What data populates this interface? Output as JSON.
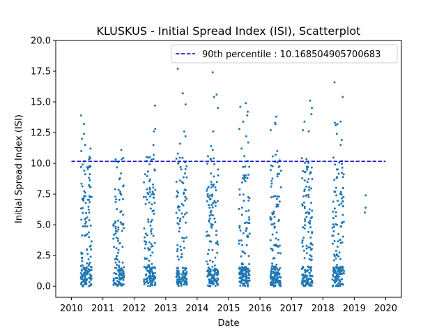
{
  "chart_data": {
    "type": "scatter",
    "title": "KLUSKUS - Initial Spread Index (ISI), Scatterplot",
    "xlabel": "Date",
    "ylabel": "Initial Spread Index (ISI)",
    "xlim": [
      2009.5,
      2020.5
    ],
    "ylim": [
      -0.9,
      20.0
    ],
    "x_ticks": [
      "2010",
      "2011",
      "2012",
      "2013",
      "2014",
      "2015",
      "2016",
      "2017",
      "2018",
      "2019",
      "2020"
    ],
    "y_ticks": [
      "0.0",
      "2.5",
      "5.0",
      "7.5",
      "10.0",
      "12.5",
      "15.0",
      "17.5",
      "20.0"
    ],
    "grid": false,
    "legend_position": "upper-right",
    "colors": {
      "points": "#1f77b4",
      "percentile_line": "#0000cd",
      "axes": "#000000"
    },
    "reference_line": {
      "label": "90th percentile : 10.168504905700683",
      "y": 10.168504905700683,
      "x_range": [
        2010.0,
        2020.0
      ],
      "style": "dashed"
    },
    "clusters": [
      {
        "year": 2010,
        "x_range": [
          2010.3,
          2010.64
        ],
        "y_max": 13.9,
        "count": 170,
        "highlights": [
          13.9,
          13.2,
          12.4,
          12.0,
          11.5,
          11.2,
          11.0
        ]
      },
      {
        "year": 2011,
        "x_range": [
          2011.33,
          2011.67
        ],
        "y_max": 11.1,
        "count": 130,
        "highlights": [
          11.1,
          8.2,
          7.9,
          7.7
        ]
      },
      {
        "year": 2012,
        "x_range": [
          2012.3,
          2012.67
        ],
        "y_max": 14.7,
        "count": 160,
        "highlights": [
          14.7,
          12.8,
          12.6,
          11.5,
          10.7
        ]
      },
      {
        "year": 2013,
        "x_range": [
          2013.33,
          2013.67
        ],
        "y_max": 17.7,
        "count": 150,
        "highlights": [
          17.7,
          15.7,
          14.8,
          12.6,
          12.2,
          11.6,
          10.8
        ]
      },
      {
        "year": 2014,
        "x_range": [
          2014.3,
          2014.67
        ],
        "y_max": 17.4,
        "count": 170,
        "highlights": [
          17.4,
          15.6,
          15.4,
          14.5,
          12.6,
          11.4,
          11.1
        ]
      },
      {
        "year": 2015,
        "x_range": [
          2015.33,
          2015.67
        ],
        "y_max": 14.9,
        "count": 170,
        "highlights": [
          14.9,
          14.6,
          14.2,
          13.9,
          13.4,
          12.8,
          12.2,
          11.7,
          11.2
        ]
      },
      {
        "year": 2016,
        "x_range": [
          2016.33,
          2016.67
        ],
        "y_max": 13.8,
        "count": 170,
        "highlights": [
          13.8,
          13.3,
          13.2,
          12.7,
          11.0,
          10.7
        ]
      },
      {
        "year": 2017,
        "x_range": [
          2017.33,
          2017.67
        ],
        "y_max": 15.1,
        "count": 160,
        "highlights": [
          15.1,
          14.5,
          14.0,
          13.4,
          12.7,
          12.6
        ]
      },
      {
        "year": 2018,
        "x_range": [
          2018.3,
          2018.67
        ],
        "y_max": 16.6,
        "count": 170,
        "highlights": [
          16.6,
          15.4,
          13.4,
          13.3,
          13.2,
          13.1,
          12.4,
          11.9,
          11.5
        ]
      },
      {
        "year": 2019,
        "x_range": [
          2019.33,
          2019.37
        ],
        "y_max": 7.4,
        "count": 3,
        "highlights": [
          7.4,
          6.4,
          6.0
        ]
      }
    ]
  }
}
